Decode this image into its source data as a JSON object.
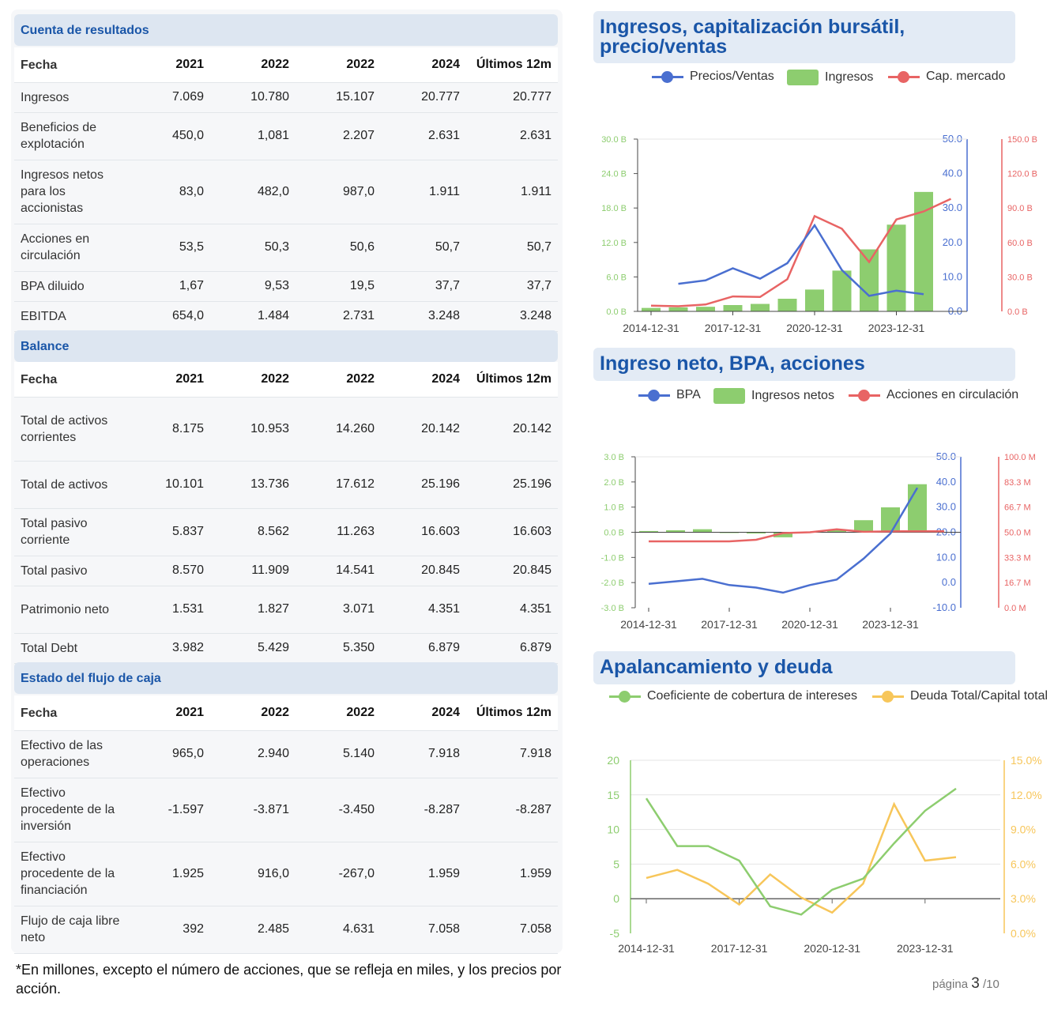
{
  "tables": {
    "income": {
      "title": "Cuenta de resultados",
      "header": [
        "Fecha",
        "2021",
        "2022",
        "2022",
        "2024",
        "Últimos 12m"
      ],
      "rows": [
        [
          "Ingresos",
          "7.069",
          "10.780",
          "15.107",
          "20.777",
          "20.777"
        ],
        [
          "Beneficios de explotación",
          "450,0",
          "1,081",
          "2.207",
          "2.631",
          "2.631"
        ],
        [
          "Ingresos netos para los accionistas",
          "83,0",
          "482,0",
          "987,0",
          "1.911",
          "1.911"
        ],
        [
          "Acciones en circulación",
          "53,5",
          "50,3",
          "50,6",
          "50,7",
          "50,7"
        ],
        [
          "BPA diluido",
          "1,67",
          "9,53",
          "19,5",
          "37,7",
          "37,7"
        ],
        [
          "EBITDA",
          "654,0",
          "1.484",
          "2.731",
          "3.248",
          "3.248"
        ]
      ]
    },
    "balance": {
      "title": "Balance",
      "header": [
        "Fecha",
        "2021",
        "2022",
        "2022",
        "2024",
        "Últimos 12m"
      ],
      "rows": [
        [
          "Total de activos corrientes",
          "8.175",
          "10.953",
          "14.260",
          "20.142",
          "20.142"
        ],
        [
          "Total de activos",
          "10.101",
          "13.736",
          "17.612",
          "25.196",
          "25.196"
        ],
        [
          "Total pasivo corriente",
          "5.837",
          "8.562",
          "11.263",
          "16.603",
          "16.603"
        ],
        [
          "Total pasivo",
          "8.570",
          "11.909",
          "14.541",
          "20.845",
          "20.845"
        ],
        [
          "Patrimonio neto",
          "1.531",
          "1.827",
          "3.071",
          "4.351",
          "4.351"
        ],
        [
          "Total Debt",
          "3.982",
          "5.429",
          "5.350",
          "6.879",
          "6.879"
        ]
      ]
    },
    "cashflow": {
      "title": "Estado del flujo de caja",
      "header": [
        "Fecha",
        "2021",
        "2022",
        "2022",
        "2024",
        "Últimos 12m"
      ],
      "rows": [
        [
          "Efectivo de las operaciones",
          "965,0",
          "2.940",
          "5.140",
          "7.918",
          "7.918"
        ],
        [
          "Efectivo procedente de la inversión",
          "-1.597",
          "-3.871",
          "-3.450",
          "-8.287",
          "-8.287"
        ],
        [
          "Efectivo procedente de la financiación",
          "1.925",
          "916,0",
          "-267,0",
          "1.959",
          "1.959"
        ],
        [
          "Flujo de caja libre neto",
          "392",
          "2.485",
          "4.631",
          "7.058",
          "7.058"
        ]
      ]
    }
  },
  "footnote": "*En millones, excepto el número de acciones, que se refleja en miles, y los precios por acción.",
  "page": {
    "label": "página",
    "current": "3",
    "total": "/10"
  },
  "colors": {
    "blue": "#4a6fd0",
    "green": "#8dcd6f",
    "red": "#e86464",
    "yellow": "#f7c65a",
    "title": "#1a56a8"
  },
  "chart_data": [
    {
      "type": "bar",
      "title": "Ingresos, capitalización bursátil, precio/ventas",
      "legend": [
        "Precios/Ventas",
        "Ingresos",
        "Cap. mercado"
      ],
      "x": [
        "2014-12-31",
        "2015-12-31",
        "2016-12-31",
        "2017-12-31",
        "2018-12-31",
        "2019-12-31",
        "2020-12-31",
        "2021-12-31",
        "2022-12-31",
        "2023-12-31",
        "2024-12-31",
        "2025-06-30"
      ],
      "x_tick_labels": [
        "2014-12-31",
        "2017-12-31",
        "2020-12-31",
        "2023-12-31"
      ],
      "left_axis": {
        "ticks": [
          "0.0 B",
          "6.0 B",
          "12.0 B",
          "18.0 B",
          "24.0 B",
          "30.0 B"
        ],
        "range": [
          0,
          30
        ]
      },
      "right_axis_1": {
        "ticks": [
          "0.0",
          "10.0",
          "20.0",
          "30.0",
          "40.0",
          "50.0"
        ],
        "range": [
          0,
          50
        ]
      },
      "right_axis_2": {
        "ticks": [
          "0.0 B",
          "30.0 B",
          "60.0 B",
          "90.0 B",
          "120.0 B",
          "150.0 B"
        ],
        "range": [
          0,
          150
        ]
      },
      "series": [
        {
          "name": "Ingresos",
          "type": "bar",
          "axis": "left",
          "values": [
            0.6,
            0.7,
            0.8,
            1.1,
            1.3,
            2.2,
            3.8,
            7.1,
            10.8,
            15.1,
            20.8,
            null
          ]
        },
        {
          "name": "Precios/Ventas",
          "type": "line",
          "axis": "right1",
          "values": [
            null,
            8.0,
            9.0,
            12.5,
            9.5,
            14.0,
            25.0,
            12.0,
            4.5,
            6.0,
            5.0,
            null
          ]
        },
        {
          "name": "Cap. mercado",
          "type": "line",
          "axis": "right2",
          "values": [
            5.0,
            4.5,
            6.0,
            13.0,
            12.5,
            28.0,
            83.0,
            72.0,
            43.0,
            80.0,
            87.0,
            98.0
          ]
        }
      ]
    },
    {
      "type": "bar",
      "title": "Ingreso neto, BPA, acciones",
      "legend": [
        "BPA",
        "Ingresos netos",
        "Acciones en circulación"
      ],
      "x": [
        "2014-12-31",
        "2015-12-31",
        "2016-12-31",
        "2017-12-31",
        "2018-12-31",
        "2019-12-31",
        "2020-12-31",
        "2021-12-31",
        "2022-12-31",
        "2023-12-31",
        "2024-12-31",
        "2025-06-30"
      ],
      "x_tick_labels": [
        "2014-12-31",
        "2017-12-31",
        "2020-12-31",
        "2023-12-31"
      ],
      "left_axis": {
        "ticks": [
          "-3.0 B",
          "-2.0 B",
          "-1.0 B",
          "0.0 B",
          "1.0 B",
          "2.0 B",
          "3.0 B"
        ],
        "range": [
          -3,
          3
        ]
      },
      "right_axis_1": {
        "ticks": [
          "-10.0",
          "0.0",
          "10.0",
          "20.0",
          "30.0",
          "40.0",
          "50.0"
        ],
        "range": [
          -10,
          50
        ]
      },
      "right_axis_2": {
        "ticks": [
          "0.0 M",
          "16.7 M",
          "33.3 M",
          "50.0 M",
          "66.7 M",
          "83.3 M",
          "100.0 M"
        ],
        "range": [
          0,
          100
        ]
      },
      "series": [
        {
          "name": "Ingresos netos",
          "type": "bar",
          "axis": "left",
          "values": [
            0.05,
            0.08,
            0.12,
            -0.03,
            -0.05,
            -0.2,
            0.02,
            0.08,
            0.48,
            0.99,
            1.91,
            null
          ]
        },
        {
          "name": "BPA",
          "type": "line",
          "axis": "right1",
          "values": [
            -0.5,
            0.5,
            1.5,
            -1.0,
            -2.0,
            -4.0,
            -1.0,
            1.2,
            9.5,
            19.5,
            37.7,
            null
          ]
        },
        {
          "name": "Acciones en circulación",
          "type": "line",
          "axis": "right2",
          "values": [
            44.0,
            44.0,
            44.0,
            44.0,
            45.0,
            49.5,
            50.0,
            52.0,
            50.3,
            50.6,
            50.7,
            50.7
          ]
        }
      ]
    },
    {
      "type": "line",
      "title": "Apalancamiento y deuda",
      "legend": [
        "Coeficiente de cobertura de intereses",
        "Deuda Total/Capital total"
      ],
      "x": [
        "2014-12-31",
        "2015-12-31",
        "2016-12-31",
        "2017-12-31",
        "2018-12-31",
        "2019-12-31",
        "2020-12-31",
        "2021-12-31",
        "2022-12-31",
        "2023-12-31",
        "2024-12-31"
      ],
      "x_tick_labels": [
        "2014-12-31",
        "2017-12-31",
        "2020-12-31",
        "2023-12-31"
      ],
      "left_axis": {
        "ticks": [
          "-5",
          "0",
          "5",
          "10",
          "15",
          "20"
        ],
        "range": [
          -5,
          20
        ]
      },
      "right_axis": {
        "ticks": [
          "0.0%",
          "3.0%",
          "6.0%",
          "9.0%",
          "12.0%",
          "15.0%"
        ],
        "range": [
          0,
          15
        ]
      },
      "series": [
        {
          "name": "Coeficiente de cobertura de intereses",
          "axis": "left",
          "values": [
            14.5,
            7.6,
            7.6,
            5.5,
            -1.1,
            -2.3,
            1.3,
            2.9,
            8.0,
            12.7,
            15.9
          ]
        },
        {
          "name": "Deuda Total/Capital total",
          "axis": "right",
          "values": [
            4.8,
            5.5,
            4.3,
            2.5,
            5.1,
            3.1,
            1.8,
            4.3,
            11.2,
            6.3,
            6.6
          ]
        }
      ]
    }
  ]
}
